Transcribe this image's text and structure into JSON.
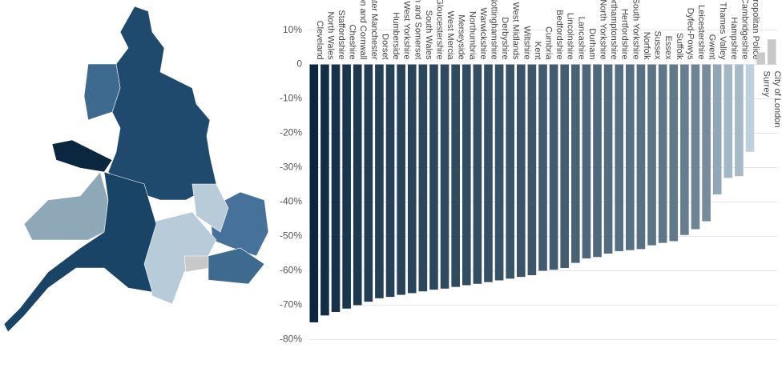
{
  "chart_data": {
    "type": "bar",
    "categories": [
      "Cleveland",
      "North Wales",
      "Staffordshire",
      "Cheshire",
      "Devon and Cornwall",
      "Greater Manchester",
      "Dorset",
      "Humberside",
      "West Yorkshire",
      "Avon and Somerset",
      "South Wales",
      "Gloucestershire",
      "West Mercia",
      "Merseyside",
      "Northumbria",
      "Warwickshire",
      "Nottinghamshire",
      "Derbyshire",
      "West Midlands",
      "Wiltshire",
      "Kent",
      "Cumbria",
      "Bedfordshire",
      "Lincolnshire",
      "Lancashire",
      "Durham",
      "North Yorkshire",
      "Northamptonshire",
      "Hertfordshire",
      "South Yorkshire",
      "Norfolk",
      "Sussex",
      "Essex",
      "Suffolk",
      "Dyfed-Powys",
      "Leicestershire",
      "Gwent",
      "Thames Valley",
      "Hampshire",
      "Cambridgeshire",
      "Metropolitan Police",
      "Surrey",
      "City of London"
    ],
    "values": [
      -75,
      -73,
      -72,
      -71,
      -70,
      -69,
      -68,
      -67.6,
      -67,
      -66.5,
      -66,
      -65.5,
      -65.2,
      -64.7,
      -64.2,
      -63.8,
      -63.3,
      -62.8,
      -62.3,
      -61.8,
      -61.3,
      -60,
      -59.7,
      -59.2,
      -57.7,
      -56.4,
      -56,
      -55,
      -54.3,
      -54,
      -53.7,
      -52.6,
      -51.9,
      -51.4,
      -49.6,
      -47.9,
      -45.6,
      -37.8,
      -33,
      -32.5,
      -25.4,
      3.5,
      7.3
    ],
    "ylim": [
      -82,
      12
    ],
    "yticks": [
      {
        "value": 10,
        "label": "10%"
      },
      0,
      {
        "value": -10,
        "label": "-10%"
      },
      {
        "value": -20,
        "label": "-20%"
      },
      {
        "value": -30,
        "label": "-30%"
      },
      {
        "value": -40,
        "label": "-40%"
      },
      {
        "value": -50,
        "label": "-50%"
      },
      {
        "value": -60,
        "label": "-60%"
      },
      {
        "value": -70,
        "label": "-70%"
      },
      {
        "value": -80,
        "label": "-80%"
      }
    ],
    "grid": true,
    "color_scale": [
      "#0b2740",
      "#bfd1dc"
    ],
    "positive_color": "#c8c8c8"
  }
}
